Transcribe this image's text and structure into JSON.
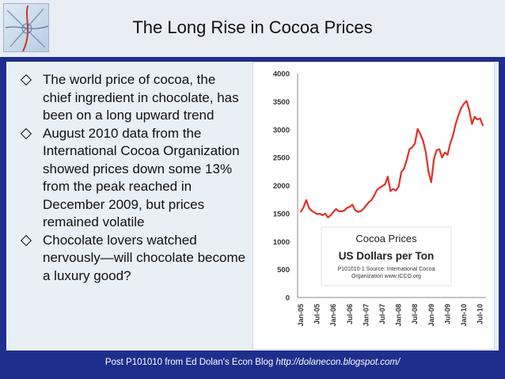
{
  "slide": {
    "title": "The Long Rise in Cocoa Prices",
    "bullets": [
      "The world price of cocoa, the chief ingredient in chocolate, has been on a long upward trend",
      "August 2010 data from the International Cocoa Organization showed prices down some 13% from the peak reached in December 2009, but prices remained volatile",
      "Chocolate lovers watched nervously—will chocolate become a luxury good?"
    ],
    "footer_text": "Post P101010 from Ed Dolan's Econ Blog ",
    "footer_url": "http://dolanecon.blogspot.com/"
  },
  "chart_data": {
    "type": "line",
    "legend_title": "Cocoa Prices",
    "legend_subtitle": "US Dollars per Ton",
    "source_note": "P101010-1 Source: International Cocoa Organization www.ICCO.org",
    "ylim": [
      0,
      4000
    ],
    "y_ticks": [
      0,
      500,
      1000,
      1500,
      2000,
      2500,
      3000,
      3500,
      4000
    ],
    "x_ticks": [
      "Jan-05",
      "Jul-05",
      "Jan-06",
      "Jul-06",
      "Jan-07",
      "Jul-07",
      "Jan-08",
      "Jul-08",
      "Jan-09",
      "Jul-09",
      "Jan-10",
      "Jul-10"
    ],
    "grid": false,
    "line_color": "#e3302a",
    "series": [
      {
        "values": [
          1530,
          1610,
          1740,
          1600,
          1550,
          1520,
          1490,
          1500,
          1470,
          1500,
          1430,
          1470,
          1530,
          1580,
          1540,
          1540,
          1550,
          1600,
          1620,
          1660,
          1560,
          1530,
          1540,
          1580,
          1640,
          1700,
          1740,
          1820,
          1920,
          1960,
          1990,
          2020,
          2160,
          1900,
          1940,
          1910,
          1980,
          2240,
          2300,
          2460,
          2650,
          2680,
          2750,
          3010,
          2920,
          2800,
          2600,
          2250,
          2060,
          2470,
          2630,
          2650,
          2500,
          2590,
          2550,
          2750,
          2890,
          3100,
          3250,
          3380,
          3460,
          3510,
          3350,
          3100,
          3230,
          3180,
          3200,
          3070
        ]
      }
    ]
  }
}
